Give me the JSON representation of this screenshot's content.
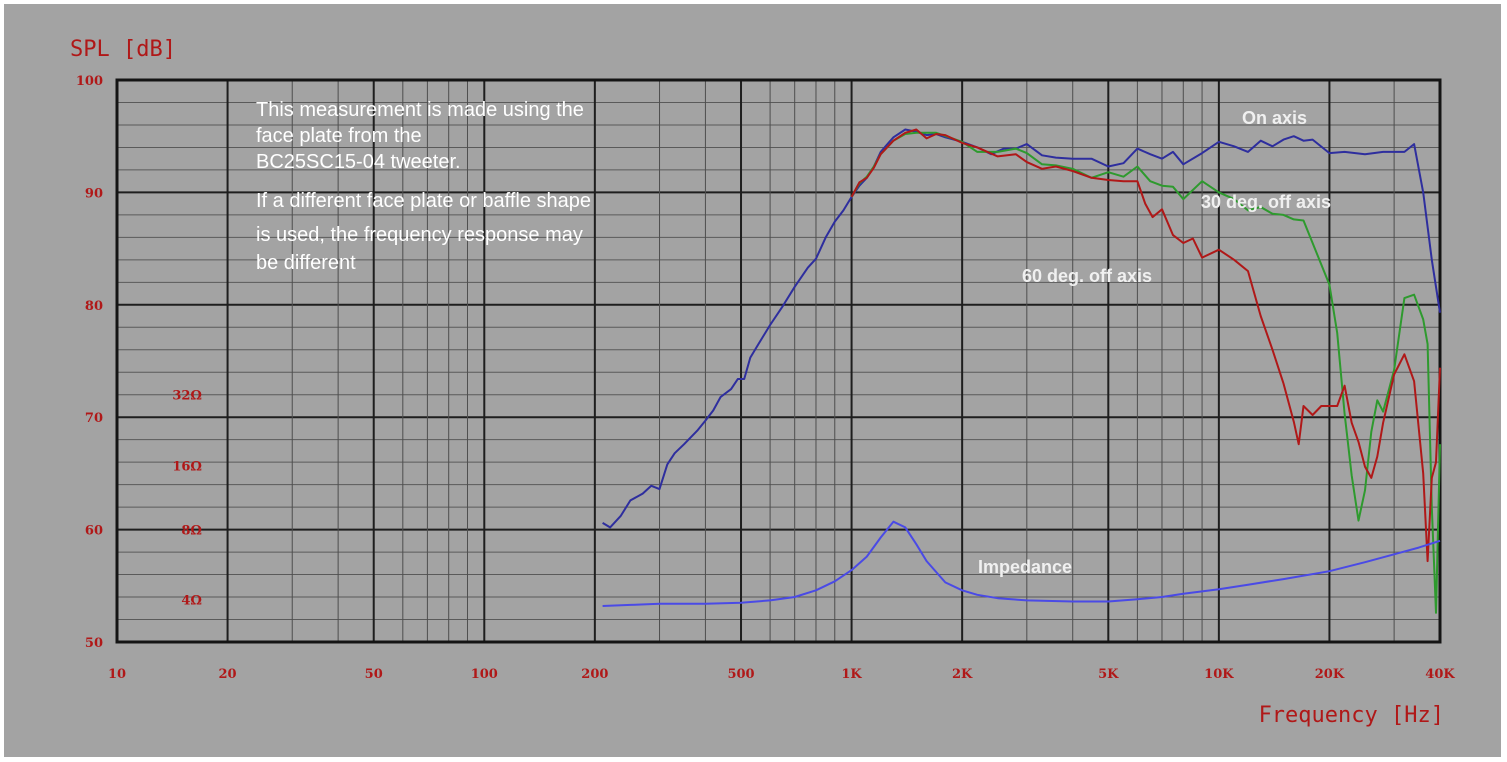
{
  "chart_data": {
    "type": "line",
    "ylabel": "SPL [dB]",
    "xlabel": "Frequency [Hz]",
    "x_scale": "log",
    "xlim": [
      10,
      40000
    ],
    "ylim": [
      50,
      100
    ],
    "grid": true,
    "yticks": [
      "50",
      "60",
      "70",
      "80",
      "90",
      "100"
    ],
    "xticks": [
      {
        "v": 10,
        "label": "10"
      },
      {
        "v": 20,
        "label": "20"
      },
      {
        "v": 50,
        "label": "50"
      },
      {
        "v": 100,
        "label": "100"
      },
      {
        "v": 200,
        "label": "200"
      },
      {
        "v": 500,
        "label": "500"
      },
      {
        "v": 1000,
        "label": "1K"
      },
      {
        "v": 2000,
        "label": "2K"
      },
      {
        "v": 5000,
        "label": "5K"
      },
      {
        "v": 10000,
        "label": "10K"
      },
      {
        "v": 20000,
        "label": "20K"
      },
      {
        "v": 40000,
        "label": "40K"
      }
    ],
    "impedance_ticks": [
      {
        "label": "32Ω",
        "y": 72
      },
      {
        "label": "16Ω",
        "y": 65.7
      },
      {
        "label": "8Ω",
        "y": 60
      },
      {
        "label": "4Ω",
        "y": 53.8
      }
    ],
    "annotation": [
      "This measurement is made using the",
      "face plate from the",
      "BC25SC15-04 tweeter.",
      "If a different face plate or baffle shape",
      "is used, the frequency response may",
      "be different"
    ],
    "series": [
      {
        "name": "On axis",
        "color": "#2e2e9e",
        "points": [
          [
            210,
            60.6
          ],
          [
            220,
            60.2
          ],
          [
            235,
            61.2
          ],
          [
            250,
            62.6
          ],
          [
            270,
            63.2
          ],
          [
            285,
            63.9
          ],
          [
            300,
            63.6
          ],
          [
            315,
            65.8
          ],
          [
            330,
            66.8
          ],
          [
            350,
            67.6
          ],
          [
            380,
            68.8
          ],
          [
            400,
            69.7
          ],
          [
            420,
            70.6
          ],
          [
            440,
            71.8
          ],
          [
            470,
            72.5
          ],
          [
            490,
            73.4
          ],
          [
            510,
            73.4
          ],
          [
            530,
            75.3
          ],
          [
            560,
            76.6
          ],
          [
            600,
            78.2
          ],
          [
            650,
            79.9
          ],
          [
            700,
            81.6
          ],
          [
            760,
            83.3
          ],
          [
            800,
            84.1
          ],
          [
            850,
            86.0
          ],
          [
            900,
            87.4
          ],
          [
            950,
            88.4
          ],
          [
            1000,
            89.6
          ],
          [
            1050,
            90.6
          ],
          [
            1100,
            91.3
          ],
          [
            1150,
            92.3
          ],
          [
            1200,
            93.6
          ],
          [
            1300,
            94.9
          ],
          [
            1400,
            95.6
          ],
          [
            1500,
            95.4
          ],
          [
            1600,
            95.1
          ],
          [
            1700,
            95.2
          ],
          [
            1800,
            94.9
          ],
          [
            2000,
            94.5
          ],
          [
            2200,
            94.0
          ],
          [
            2400,
            93.4
          ],
          [
            2600,
            93.9
          ],
          [
            2800,
            93.9
          ],
          [
            3000,
            94.3
          ],
          [
            3300,
            93.3
          ],
          [
            3600,
            93.1
          ],
          [
            4000,
            93.0
          ],
          [
            4500,
            93.0
          ],
          [
            5000,
            92.3
          ],
          [
            5500,
            92.6
          ],
          [
            6000,
            93.9
          ],
          [
            6500,
            93.4
          ],
          [
            7000,
            93.0
          ],
          [
            7500,
            93.6
          ],
          [
            8000,
            92.5
          ],
          [
            9000,
            93.5
          ],
          [
            10000,
            94.5
          ],
          [
            11000,
            94.1
          ],
          [
            12000,
            93.6
          ],
          [
            13000,
            94.6
          ],
          [
            14000,
            94.1
          ],
          [
            15000,
            94.7
          ],
          [
            16000,
            95.0
          ],
          [
            17000,
            94.6
          ],
          [
            18000,
            94.7
          ],
          [
            20000,
            93.5
          ],
          [
            22000,
            93.6
          ],
          [
            25000,
            93.4
          ],
          [
            28000,
            93.6
          ],
          [
            32000,
            93.6
          ],
          [
            34000,
            94.3
          ],
          [
            36000,
            90.0
          ],
          [
            38000,
            84.0
          ],
          [
            40000,
            79.3
          ]
        ]
      },
      {
        "name": "30 deg. off axis",
        "color": "#2e9a2e",
        "points": [
          [
            1000,
            89.6
          ],
          [
            1050,
            90.8
          ],
          [
            1100,
            91.4
          ],
          [
            1150,
            92.3
          ],
          [
            1200,
            93.4
          ],
          [
            1300,
            94.6
          ],
          [
            1400,
            95.2
          ],
          [
            1500,
            95.3
          ],
          [
            1700,
            95.3
          ],
          [
            2000,
            94.5
          ],
          [
            2200,
            93.6
          ],
          [
            2500,
            93.6
          ],
          [
            2800,
            93.9
          ],
          [
            3000,
            93.5
          ],
          [
            3300,
            92.5
          ],
          [
            3600,
            92.4
          ],
          [
            4000,
            92.1
          ],
          [
            4500,
            91.3
          ],
          [
            5000,
            91.8
          ],
          [
            5500,
            91.4
          ],
          [
            6000,
            92.3
          ],
          [
            6500,
            91.0
          ],
          [
            7000,
            90.6
          ],
          [
            7500,
            90.5
          ],
          [
            8000,
            89.4
          ],
          [
            9000,
            91.0
          ],
          [
            10000,
            90.0
          ],
          [
            11000,
            89.4
          ],
          [
            12000,
            88.4
          ],
          [
            13000,
            88.7
          ],
          [
            14000,
            88.1
          ],
          [
            15000,
            88.0
          ],
          [
            16000,
            87.6
          ],
          [
            17000,
            87.5
          ],
          [
            18000,
            85.5
          ],
          [
            20000,
            81.8
          ],
          [
            21000,
            77.5
          ],
          [
            22000,
            70.3
          ],
          [
            23000,
            64.8
          ],
          [
            24000,
            60.8
          ],
          [
            25000,
            63.5
          ],
          [
            26000,
            68.7
          ],
          [
            27000,
            71.5
          ],
          [
            28000,
            70.5
          ],
          [
            30000,
            74.2
          ],
          [
            32000,
            80.6
          ],
          [
            34000,
            80.9
          ],
          [
            36000,
            78.7
          ],
          [
            37000,
            76.5
          ],
          [
            38000,
            62.0
          ],
          [
            39000,
            52.6
          ],
          [
            40000,
            67.6
          ]
        ]
      },
      {
        "name": "60 deg. off axis",
        "color": "#b01818",
        "points": [
          [
            1000,
            89.6
          ],
          [
            1050,
            90.9
          ],
          [
            1100,
            91.3
          ],
          [
            1150,
            92.2
          ],
          [
            1200,
            93.4
          ],
          [
            1300,
            94.6
          ],
          [
            1400,
            95.3
          ],
          [
            1500,
            95.6
          ],
          [
            1600,
            94.8
          ],
          [
            1700,
            95.2
          ],
          [
            1800,
            95.1
          ],
          [
            2000,
            94.4
          ],
          [
            2200,
            94.0
          ],
          [
            2500,
            93.2
          ],
          [
            2800,
            93.4
          ],
          [
            3000,
            92.7
          ],
          [
            3300,
            92.1
          ],
          [
            3600,
            92.3
          ],
          [
            4000,
            91.9
          ],
          [
            4500,
            91.3
          ],
          [
            5000,
            91.1
          ],
          [
            5500,
            91.0
          ],
          [
            6000,
            91.0
          ],
          [
            6300,
            89.0
          ],
          [
            6600,
            87.8
          ],
          [
            7000,
            88.5
          ],
          [
            7500,
            86.2
          ],
          [
            8000,
            85.5
          ],
          [
            8500,
            85.9
          ],
          [
            9000,
            84.2
          ],
          [
            10000,
            84.9
          ],
          [
            11000,
            84.0
          ],
          [
            12000,
            83.0
          ],
          [
            13000,
            79.0
          ],
          [
            14000,
            76.0
          ],
          [
            15000,
            73.0
          ],
          [
            16000,
            69.6
          ],
          [
            16500,
            67.6
          ],
          [
            17000,
            71.0
          ],
          [
            18000,
            70.2
          ],
          [
            19000,
            71.0
          ],
          [
            20000,
            71.0
          ],
          [
            21000,
            71.0
          ],
          [
            22000,
            72.8
          ],
          [
            23000,
            69.5
          ],
          [
            24000,
            67.8
          ],
          [
            25000,
            65.6
          ],
          [
            26000,
            64.6
          ],
          [
            27000,
            66.5
          ],
          [
            28000,
            69.5
          ],
          [
            30000,
            73.8
          ],
          [
            32000,
            75.6
          ],
          [
            34000,
            73.2
          ],
          [
            36000,
            65.0
          ],
          [
            37000,
            57.2
          ],
          [
            38000,
            64.6
          ],
          [
            39000,
            66.0
          ],
          [
            40000,
            74.4
          ]
        ]
      },
      {
        "name": "Impedance",
        "color": "#4a4ae6",
        "points": [
          [
            210,
            53.2
          ],
          [
            250,
            53.3
          ],
          [
            300,
            53.4
          ],
          [
            400,
            53.4
          ],
          [
            500,
            53.5
          ],
          [
            600,
            53.7
          ],
          [
            700,
            54.0
          ],
          [
            800,
            54.6
          ],
          [
            900,
            55.4
          ],
          [
            1000,
            56.4
          ],
          [
            1100,
            57.6
          ],
          [
            1200,
            59.3
          ],
          [
            1300,
            60.7
          ],
          [
            1400,
            60.2
          ],
          [
            1500,
            58.7
          ],
          [
            1600,
            57.2
          ],
          [
            1800,
            55.3
          ],
          [
            2000,
            54.6
          ],
          [
            2200,
            54.2
          ],
          [
            2500,
            53.9
          ],
          [
            3000,
            53.7
          ],
          [
            4000,
            53.6
          ],
          [
            5000,
            53.6
          ],
          [
            6000,
            53.8
          ],
          [
            7000,
            54.0
          ],
          [
            8000,
            54.3
          ],
          [
            10000,
            54.7
          ],
          [
            12000,
            55.1
          ],
          [
            15000,
            55.6
          ],
          [
            20000,
            56.3
          ],
          [
            25000,
            57.1
          ],
          [
            30000,
            57.8
          ],
          [
            35000,
            58.4
          ],
          [
            40000,
            59.0
          ]
        ]
      }
    ]
  }
}
